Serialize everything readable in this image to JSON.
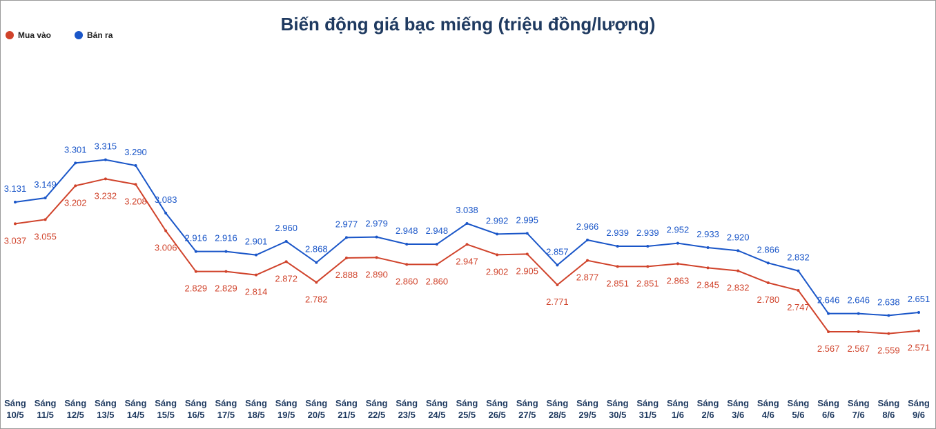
{
  "chart_data": {
    "type": "line",
    "title": "Biến động giá bạc miếng (triệu đồng/lượng)",
    "categories": [
      "Sáng 10/5",
      "Sáng 11/5",
      "Sáng 12/5",
      "Sáng 13/5",
      "Sáng 14/5",
      "Sáng 15/5",
      "Sáng 16/5",
      "Sáng 17/5",
      "Sáng 18/5",
      "Sáng 19/5",
      "Sáng 20/5",
      "Sáng 21/5",
      "Sáng 22/5",
      "Sáng 23/5",
      "Sáng 24/5",
      "Sáng 25/5",
      "Sáng 26/5",
      "Sáng 27/5",
      "Sáng 28/5",
      "Sáng 29/5",
      "Sáng 30/5",
      "Sáng 31/5",
      "Sáng 1/6",
      "Sáng 2/6",
      "Sáng 3/6",
      "Sáng 4/6",
      "Sáng 5/6",
      "Sáng 6/6",
      "Sáng 7/6",
      "Sáng 8/6",
      "Sáng 9/6"
    ],
    "series": [
      {
        "name": "Mua vào",
        "color": "#d0432b",
        "label_position": "below",
        "values": [
          3.037,
          3.055,
          3.202,
          3.232,
          3.208,
          3.006,
          2.829,
          2.829,
          2.814,
          2.872,
          2.782,
          2.888,
          2.89,
          2.86,
          2.86,
          2.947,
          2.902,
          2.905,
          2.771,
          2.877,
          2.851,
          2.851,
          2.863,
          2.845,
          2.832,
          2.78,
          2.747,
          2.567,
          2.567,
          2.559,
          2.571
        ],
        "value_labels": [
          "3.037",
          "3.055",
          "3.202",
          "3.232",
          "3.208",
          "3.006",
          "2.829",
          "2.829",
          "2.814",
          "2.872",
          "2.782",
          "2.888",
          "2.890",
          "2.860",
          "2.860",
          "2.947",
          "2.902",
          "2.905",
          "2.771",
          "2.877",
          "2.851",
          "2.851",
          "2.863",
          "2.845",
          "2.832",
          "2.780",
          "2.747",
          "2.567",
          "2.567",
          "2.559",
          "2.571"
        ]
      },
      {
        "name": "Bán ra",
        "color": "#1a56c8",
        "label_position": "above",
        "values": [
          3.131,
          3.149,
          3.301,
          3.315,
          3.29,
          3.083,
          2.916,
          2.916,
          2.901,
          2.96,
          2.868,
          2.977,
          2.979,
          2.948,
          2.948,
          3.038,
          2.992,
          2.995,
          2.857,
          2.966,
          2.939,
          2.939,
          2.952,
          2.933,
          2.92,
          2.866,
          2.832,
          2.646,
          2.646,
          2.638,
          2.651
        ],
        "value_labels": [
          "3.131",
          "3.149",
          "3.301",
          "3.315",
          "3.290",
          "3.083",
          "2.916",
          "2.916",
          "2.901",
          "2.960",
          "2.868",
          "2.977",
          "2.979",
          "2.948",
          "2.948",
          "3.038",
          "2.992",
          "2.995",
          "2.857",
          "2.966",
          "2.939",
          "2.939",
          "2.952",
          "2.933",
          "2.920",
          "2.866",
          "2.832",
          "2.646",
          "2.646",
          "2.638",
          "2.651"
        ]
      }
    ],
    "ylim": [
      2.3,
      3.8
    ]
  }
}
